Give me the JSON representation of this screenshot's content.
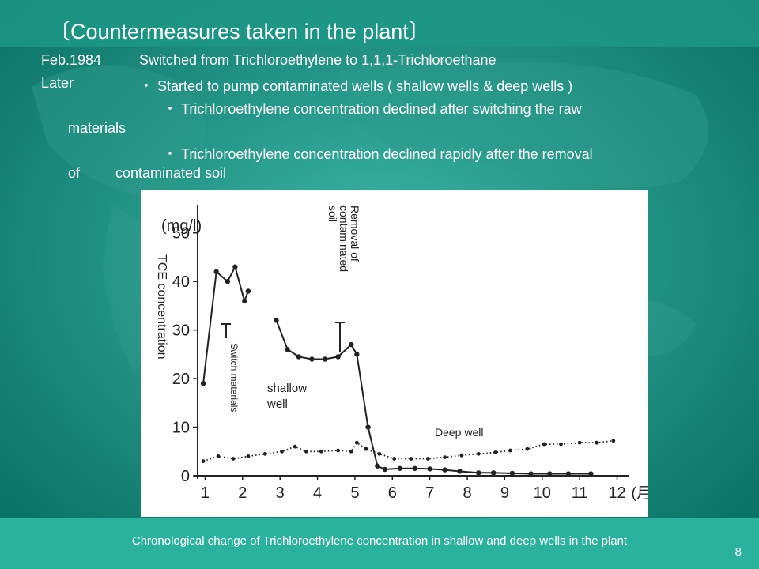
{
  "slide": {
    "title": "〔Countermeasures taken in the plant〕",
    "lines": [
      {
        "date": "Feb.1984",
        "text": "Switched from Trichloroethylene to 1,1,1-Trichloroethane"
      },
      {
        "date": "Later",
        "text": "・ Started to pump contaminated wells ( shallow wells & deep wells )"
      }
    ],
    "bullet2a": "・ Trichloroethylene concentration declined after switching the raw",
    "bullet2b": "materials",
    "bullet3a": "・ Trichloroethylene concentration declined rapidly after the removal",
    "bullet3b_of": "of",
    "bullet3b_rest": "contaminated soil",
    "caption": "Chronological change of Trichloroethylene concentration in shallow and deep wells in the plant",
    "page_number": "8",
    "colors": {
      "background": "#1a8f80",
      "band": "#2bb3a0",
      "white": "#ffffff"
    }
  },
  "chart_data": {
    "type": "line",
    "ylabel": "TCE concentration",
    "yunit": "(mg/l)",
    "xunit": "(月)",
    "xlim": [
      0.8,
      12.2
    ],
    "ylim": [
      0,
      55
    ],
    "xticks": [
      1,
      2,
      3,
      4,
      5,
      6,
      7,
      8,
      9,
      10,
      11,
      12
    ],
    "yticks": [
      0,
      10,
      20,
      30,
      40,
      50
    ],
    "series": [
      {
        "name": "shallow well",
        "style": "solid",
        "points": [
          [
            0.95,
            19
          ],
          [
            1.3,
            42
          ],
          [
            1.6,
            40
          ],
          [
            1.8,
            43
          ],
          [
            2.05,
            36
          ],
          [
            2.15,
            38
          ]
        ]
      },
      {
        "name": "shallow well",
        "style": "solid",
        "points": [
          [
            2.9,
            32
          ],
          [
            3.2,
            26
          ],
          [
            3.5,
            24.5
          ],
          [
            3.85,
            24
          ],
          [
            4.2,
            24
          ],
          [
            4.55,
            24.5
          ],
          [
            4.9,
            27
          ],
          [
            5.05,
            25
          ],
          [
            5.35,
            10
          ],
          [
            5.6,
            2
          ],
          [
            5.8,
            1.3
          ],
          [
            6.2,
            1.5
          ],
          [
            6.6,
            1.5
          ],
          [
            7.0,
            1.4
          ],
          [
            7.4,
            1.2
          ],
          [
            7.8,
            0.9
          ],
          [
            8.3,
            0.6
          ],
          [
            8.7,
            0.6
          ],
          [
            9.2,
            0.5
          ],
          [
            9.7,
            0.4
          ],
          [
            10.2,
            0.4
          ],
          [
            10.7,
            0.4
          ],
          [
            11.3,
            0.4
          ]
        ]
      },
      {
        "name": "Deep well",
        "style": "dotted",
        "points": [
          [
            0.95,
            3
          ],
          [
            1.35,
            4
          ],
          [
            1.75,
            3.5
          ],
          [
            2.15,
            4
          ],
          [
            2.6,
            4.5
          ],
          [
            3.05,
            5
          ],
          [
            3.4,
            6
          ],
          [
            3.7,
            5
          ],
          [
            4.1,
            5
          ],
          [
            4.55,
            5.2
          ],
          [
            4.9,
            5
          ],
          [
            5.05,
            6.8
          ],
          [
            5.3,
            5.5
          ],
          [
            5.65,
            4.5
          ],
          [
            6.05,
            3.5
          ],
          [
            6.5,
            3.5
          ],
          [
            6.95,
            3.5
          ],
          [
            7.4,
            3.8
          ],
          [
            7.85,
            4.2
          ],
          [
            8.3,
            4.5
          ],
          [
            8.75,
            4.8
          ],
          [
            9.15,
            5.2
          ],
          [
            9.6,
            5.5
          ],
          [
            10.05,
            6.5
          ],
          [
            10.5,
            6.5
          ],
          [
            11.0,
            6.8
          ],
          [
            11.45,
            6.8
          ],
          [
            11.9,
            7.2
          ]
        ]
      }
    ],
    "annotations": {
      "switch": "Switch materials",
      "removal": [
        "Removal of",
        "contaminated",
        "soil"
      ],
      "shallow": [
        "shallow",
        "well"
      ],
      "deep": "Deep well"
    }
  }
}
